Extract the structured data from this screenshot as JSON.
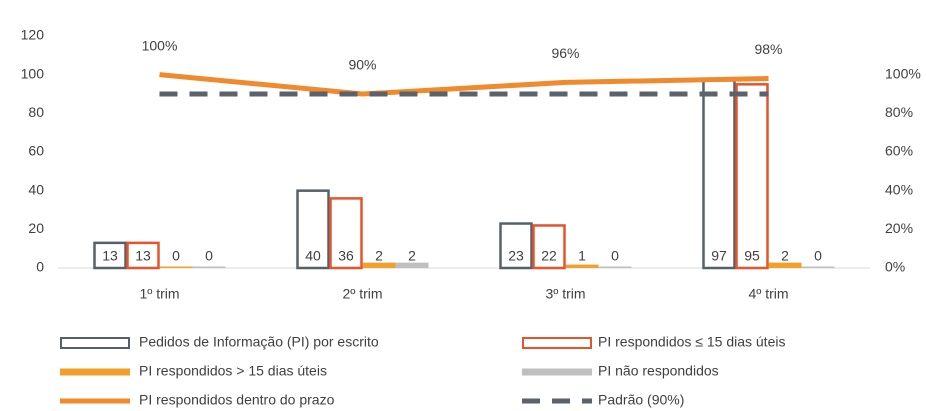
{
  "chart_data": {
    "type": "bar_line",
    "categories": [
      "1º trim",
      "2º trim",
      "3º trim",
      "4º trim"
    ],
    "series": [
      {
        "name": "Pedidos de Informação (PI) por escrito",
        "color": "#56606b",
        "outline": true,
        "axis": "y",
        "values": [
          13,
          40,
          23,
          97
        ]
      },
      {
        "name": "PI respondidos ≤ 15 dias úteis",
        "color": "#e8532a",
        "outline": true,
        "axis": "y",
        "values": [
          13,
          36,
          22,
          95
        ]
      },
      {
        "name": "PI respondidos > 15 dias úteis",
        "color": "#f2a02c",
        "axis": "y",
        "values": [
          0,
          2,
          1,
          2
        ]
      },
      {
        "name": "PI não respondidos",
        "color": "#bfbfbf",
        "axis": "y",
        "values": [
          0,
          2,
          0,
          0
        ]
      },
      {
        "name": "PI respondidos dentro do prazo",
        "color": "#f08a2c",
        "type": "line",
        "axis": "y2",
        "values": [
          100,
          90,
          96,
          98
        ],
        "value_labels": [
          "100%",
          "90%",
          "96%",
          "98%"
        ]
      },
      {
        "name": "Padrão (90%)",
        "color": "#5a626b",
        "type": "line",
        "dashed": true,
        "axis": "y2",
        "values": [
          90,
          90,
          90,
          90
        ]
      }
    ],
    "ylim": [
      0,
      120
    ],
    "yticks": [
      0,
      20,
      40,
      60,
      80,
      100,
      120
    ],
    "y2lim": [
      0,
      120
    ],
    "y2ticks": [
      {
        "value": 0,
        "label": "0%"
      },
      {
        "value": 20,
        "label": "20%"
      },
      {
        "value": 40,
        "label": "40%"
      },
      {
        "value": 60,
        "label": "60%"
      },
      {
        "value": 80,
        "label": "80%"
      },
      {
        "value": 100,
        "label": "100%"
      }
    ],
    "legend": "bottom",
    "grid": false
  }
}
